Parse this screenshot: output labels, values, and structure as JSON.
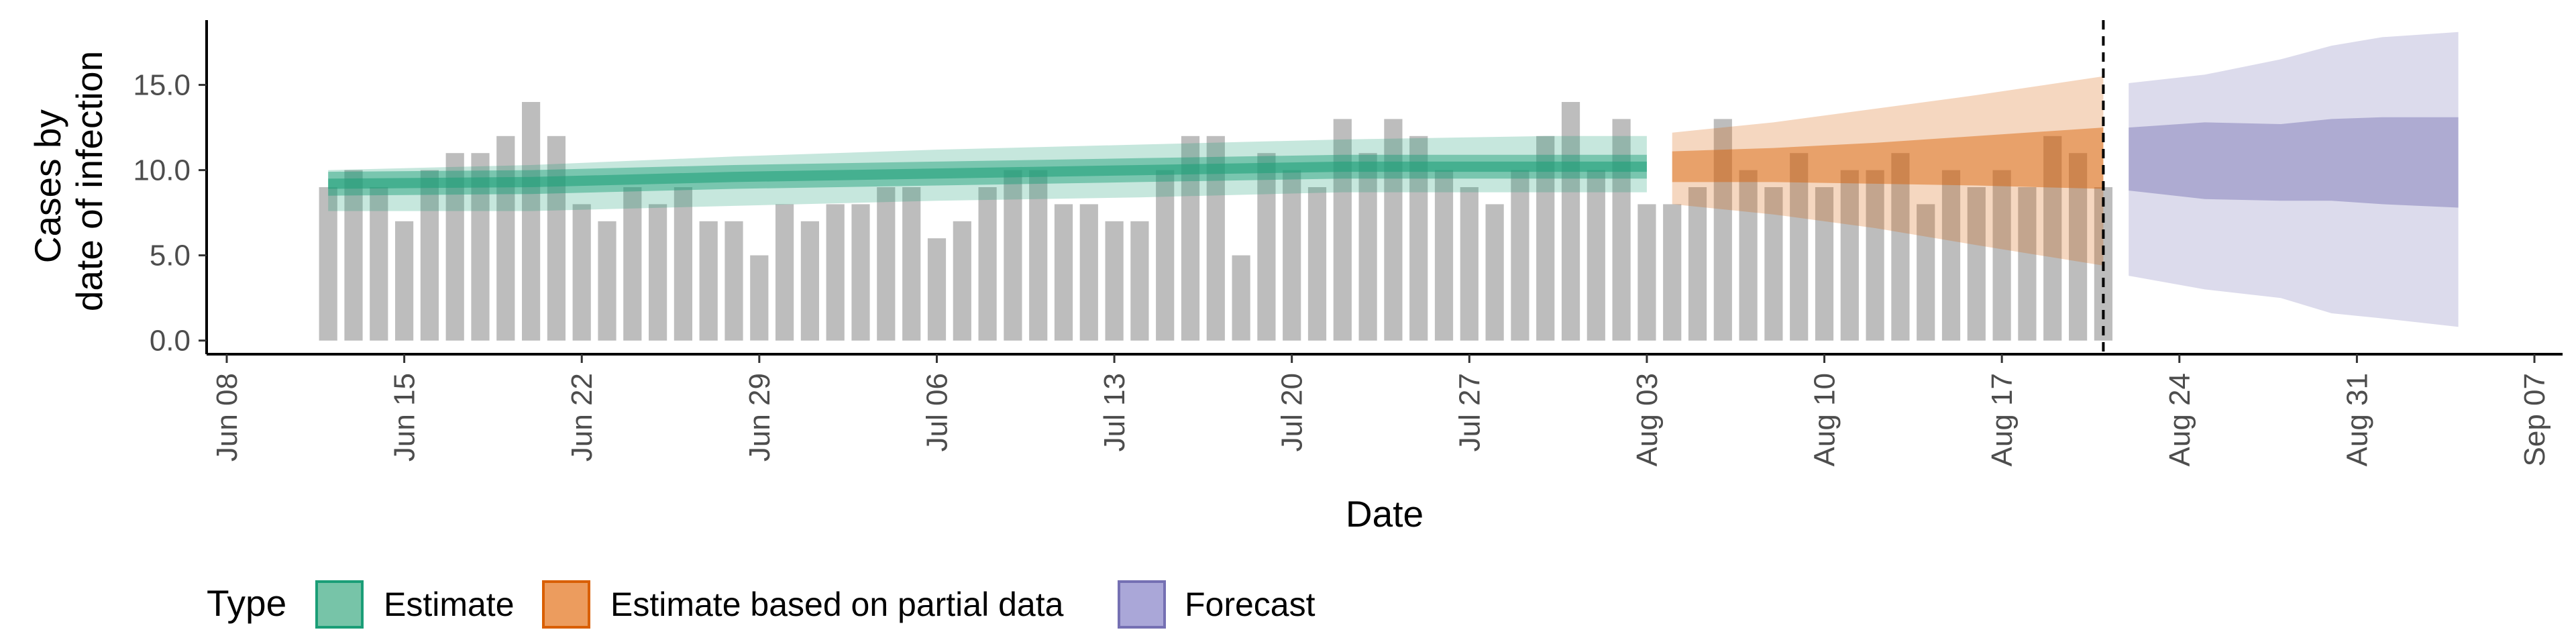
{
  "chart_data": {
    "type": "bar",
    "title": "",
    "xlabel": "Date",
    "ylabel_lines": [
      "Cases by",
      "date of infection"
    ],
    "ylim": [
      -0.8,
      18.8
    ],
    "yticks": [
      0,
      5,
      10,
      15
    ],
    "ytick_labels": [
      "0.0",
      "5.0",
      "10.0",
      "15.0"
    ],
    "x_start": "2020-06-08",
    "x_end": "2020-09-07",
    "xticks": [
      {
        "date": "2020-06-08",
        "label": "Jun 08"
      },
      {
        "date": "2020-06-15",
        "label": "Jun 15"
      },
      {
        "date": "2020-06-22",
        "label": "Jun 22"
      },
      {
        "date": "2020-06-29",
        "label": "Jun 29"
      },
      {
        "date": "2020-07-06",
        "label": "Jul 06"
      },
      {
        "date": "2020-07-13",
        "label": "Jul 13"
      },
      {
        "date": "2020-07-20",
        "label": "Jul 20"
      },
      {
        "date": "2020-07-27",
        "label": "Jul 27"
      },
      {
        "date": "2020-08-03",
        "label": "Aug 03"
      },
      {
        "date": "2020-08-10",
        "label": "Aug 10"
      },
      {
        "date": "2020-08-17",
        "label": "Aug 17"
      },
      {
        "date": "2020-08-24",
        "label": "Aug 24"
      },
      {
        "date": "2020-08-31",
        "label": "Aug 31"
      },
      {
        "date": "2020-09-07",
        "label": "Sep 07"
      }
    ],
    "bars": {
      "start_date": "2020-06-12",
      "color": "#bdbdbd",
      "values": [
        9,
        10,
        9,
        7,
        10,
        11,
        11,
        12,
        14,
        12,
        8,
        7,
        9,
        8,
        9,
        7,
        7,
        5,
        8,
        7,
        8,
        8,
        9,
        9,
        6,
        7,
        9,
        10,
        10,
        8,
        8,
        7,
        7,
        10,
        12,
        12,
        5,
        11,
        10,
        9,
        13,
        11,
        13,
        12,
        10,
        9,
        8,
        10,
        12,
        14,
        10,
        13,
        8,
        8,
        9,
        13,
        10,
        9,
        11,
        9,
        10,
        10,
        11,
        8,
        10,
        9,
        10,
        9,
        12,
        11,
        9
      ]
    },
    "cutoff_date": "2020-08-21",
    "ribbons": [
      {
        "name": "Estimate",
        "color": "#1b9e77",
        "dates": [
          "2020-06-12",
          "2020-06-20",
          "2020-06-28",
          "2020-07-06",
          "2020-07-14",
          "2020-07-22",
          "2020-07-30",
          "2020-08-03"
        ],
        "median": [
          9.2,
          9.3,
          9.6,
          9.8,
          10.0,
          10.2,
          10.2,
          10.2
        ],
        "inner_low": [
          8.5,
          8.6,
          8.9,
          9.1,
          9.3,
          9.5,
          9.5,
          9.5
        ],
        "inner_high": [
          9.9,
          10.0,
          10.3,
          10.5,
          10.7,
          10.9,
          10.9,
          10.9
        ],
        "outer_low": [
          7.6,
          7.6,
          7.9,
          8.2,
          8.4,
          8.7,
          8.7,
          8.7
        ],
        "outer_high": [
          10.0,
          10.3,
          10.8,
          11.2,
          11.5,
          11.8,
          12.0,
          12.0
        ]
      },
      {
        "name": "Estimate based on partial data",
        "color": "#d95f02",
        "dates": [
          "2020-08-04",
          "2020-08-08",
          "2020-08-12",
          "2020-08-16",
          "2020-08-21"
        ],
        "inner_low": [
          9.3,
          9.3,
          9.2,
          9.1,
          8.9
        ],
        "inner_high": [
          11.1,
          11.3,
          11.6,
          12.0,
          12.5
        ],
        "outer_low": [
          8.0,
          7.4,
          6.6,
          5.6,
          4.4
        ],
        "outer_high": [
          12.2,
          12.8,
          13.6,
          14.4,
          15.5
        ]
      },
      {
        "name": "Forecast",
        "color": "#7570b3",
        "dates": [
          "2020-08-22",
          "2020-08-25",
          "2020-08-28",
          "2020-08-30",
          "2020-09-01",
          "2020-09-04"
        ],
        "inner_low": [
          8.8,
          8.3,
          8.2,
          8.2,
          8.0,
          7.8
        ],
        "inner_high": [
          12.5,
          12.8,
          12.7,
          13.0,
          13.1,
          13.1
        ],
        "outer_low": [
          3.8,
          3.0,
          2.5,
          1.6,
          1.3,
          0.8
        ],
        "outer_high": [
          15.1,
          15.6,
          16.5,
          17.3,
          17.8,
          18.1
        ]
      }
    ],
    "legend": {
      "title": "Type",
      "position": "bottom-left",
      "items": [
        {
          "label": "Estimate",
          "fill": "#77c4a8",
          "stroke": "#1b9e77"
        },
        {
          "label": "Estimate based on partial data",
          "fill": "#ec9c5e",
          "stroke": "#d95f02"
        },
        {
          "label": "Forecast",
          "fill": "#aaa7d8",
          "stroke": "#7570b3"
        }
      ]
    }
  }
}
